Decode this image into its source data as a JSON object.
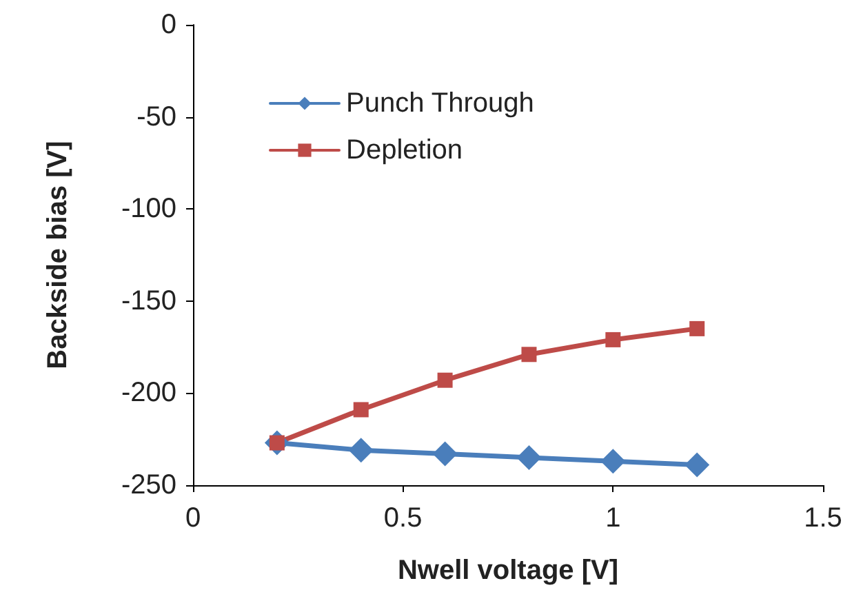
{
  "chart_data": {
    "type": "line",
    "xlabel": "Nwell voltage [V]",
    "ylabel": "Backside bias [V]",
    "x": [
      0.2,
      0.4,
      0.6,
      0.8,
      1.0,
      1.2
    ],
    "series": [
      {
        "name": "Punch Through",
        "color": "#4a7ebb",
        "marker": "diamond",
        "values": [
          -227,
          -231,
          -233,
          -235,
          -237,
          -239
        ]
      },
      {
        "name": "Depletion",
        "color": "#be4b48",
        "marker": "square",
        "values": [
          -227,
          -209,
          -193,
          -179,
          -171,
          -165
        ]
      }
    ],
    "xlim": [
      0,
      1.5
    ],
    "xticks": [
      0,
      0.5,
      1,
      1.5
    ],
    "ylim": [
      -250,
      0
    ],
    "yticks": [
      -250,
      -200,
      -150,
      -100,
      -50,
      0
    ],
    "grid": false,
    "legend": "top left",
    "line_style": "solid"
  }
}
